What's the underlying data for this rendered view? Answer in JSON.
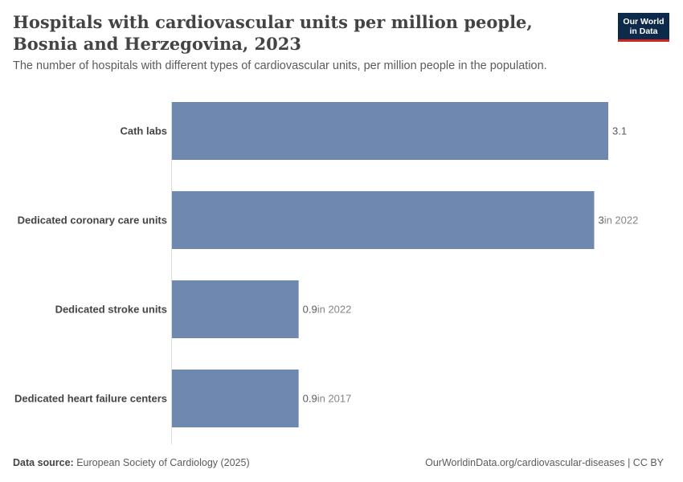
{
  "header": {
    "title": "Hospitals with cardiovascular units per million people, Bosnia and Herzegovina, 2023",
    "subtitle": "The number of hospitals with different types of cardiovascular units, per million people in the population."
  },
  "logo": {
    "line1": "Our World",
    "line2": "in Data",
    "bg_color": "#0d2a4b",
    "accent_color": "#ce261e"
  },
  "footer": {
    "source_label": "Data source:",
    "source_text": "European Society of Cardiology (2025)",
    "right_text": "OurWorldinData.org/cardiovascular-diseases | CC BY"
  },
  "chart_data": {
    "type": "bar",
    "orientation": "horizontal",
    "categories": [
      "Cath labs",
      "Dedicated coronary care units",
      "Dedicated stroke units",
      "Dedicated heart failure centers"
    ],
    "values": [
      3.1,
      3,
      0.9,
      0.9
    ],
    "value_labels": [
      "3.1",
      "3",
      "0.9",
      "0.9"
    ],
    "year_notes": [
      "",
      "in 2022",
      "in 2022",
      "in 2017"
    ],
    "xlim": [
      0,
      3.1
    ],
    "bar_color": "#6f88b0",
    "grid": false
  }
}
